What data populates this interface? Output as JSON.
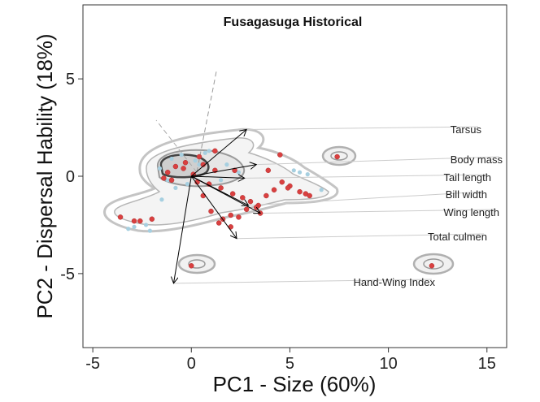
{
  "chart_data": {
    "type": "scatter",
    "title": "Fusagasuga Historical",
    "xlabel": "PC1 - Size (60%)",
    "ylabel": "PC2 - Dispersal Hability (18%)",
    "xlim": [
      -5.5,
      16
    ],
    "ylim": [
      -8.8,
      8.8
    ],
    "xticks": [
      -5,
      0,
      5,
      10,
      15
    ],
    "yticks": [
      -5,
      0,
      5
    ],
    "grid": false,
    "legend": "none",
    "colors": {
      "historical": "#d94040",
      "current": "#a6cfe0",
      "contour": "#a8a8a8",
      "core": "#555555",
      "arrow": "#000000",
      "leader": "#cccccc"
    },
    "series": [
      {
        "color": "#d94040",
        "x": [
          -1.2,
          -0.8,
          -0.4,
          0.1,
          0.6,
          1.2,
          -1.4,
          0.3,
          0.9,
          1.5,
          2.1,
          2.6,
          3.0,
          3.4,
          3.8,
          4.2,
          4.6,
          5.0,
          5.5,
          5.8,
          6.0,
          1.0,
          1.6,
          2.0,
          2.4,
          2.8,
          3.3,
          3.5,
          1.4,
          2.0,
          -2.0,
          -2.6,
          -3.6,
          -2.9,
          7.4,
          12.2,
          0.0,
          1.2,
          -1.0,
          -0.3,
          0.4,
          2.2,
          0.6,
          3.9,
          4.5,
          4.9
        ],
        "y": [
          0.2,
          0.5,
          0.4,
          0.1,
          0.6,
          0.3,
          -0.1,
          -0.3,
          -0.4,
          -0.6,
          -0.9,
          -1.1,
          -1.3,
          -1.5,
          -1.0,
          -0.7,
          -0.3,
          -0.5,
          -0.8,
          -0.9,
          -1.0,
          -1.8,
          -2.2,
          -2.0,
          -2.1,
          -1.7,
          -1.6,
          -1.9,
          -2.4,
          -2.6,
          -2.2,
          -2.3,
          -2.1,
          -2.3,
          1.0,
          -4.6,
          -4.6,
          1.3,
          -0.2,
          0.7,
          1.0,
          0.3,
          -1.0,
          0.3,
          1.1,
          -0.6
        ]
      },
      {
        "color": "#a6cfe0",
        "x": [
          -1.6,
          -1.0,
          -0.5,
          0.2,
          0.9,
          1.5,
          -2.3,
          -2.9,
          -3.2,
          -1.5,
          5.2,
          5.5,
          5.9,
          6.6,
          0.7,
          -0.8,
          1.8,
          2.4,
          -0.2,
          -2.1,
          -1.2,
          0.4
        ],
        "y": [
          0.4,
          0.9,
          1.1,
          0.8,
          1.3,
          -0.2,
          -2.5,
          -2.6,
          -2.7,
          -1.2,
          0.3,
          0.2,
          0.1,
          -0.7,
          1.2,
          -0.6,
          0.6,
          0.2,
          -0.4,
          -2.8,
          -0.2,
          0.6
        ]
      }
    ],
    "loadings": [
      {
        "label": "Tarsus",
        "x": 2.8,
        "y": 2.4
      },
      {
        "label": "Body mass",
        "x": 3.3,
        "y": 0.6
      },
      {
        "label": "Tail length",
        "x": 2.7,
        "y": -0.1
      },
      {
        "label": "Bill width",
        "x": 2.9,
        "y": -1.5
      },
      {
        "label": "Wing length",
        "x": 3.5,
        "y": -1.9
      },
      {
        "label": "Total culmen",
        "x": 2.3,
        "y": -3.2
      },
      {
        "label": "Hand-Wing Index",
        "x": -0.9,
        "y": -5.5
      }
    ]
  }
}
